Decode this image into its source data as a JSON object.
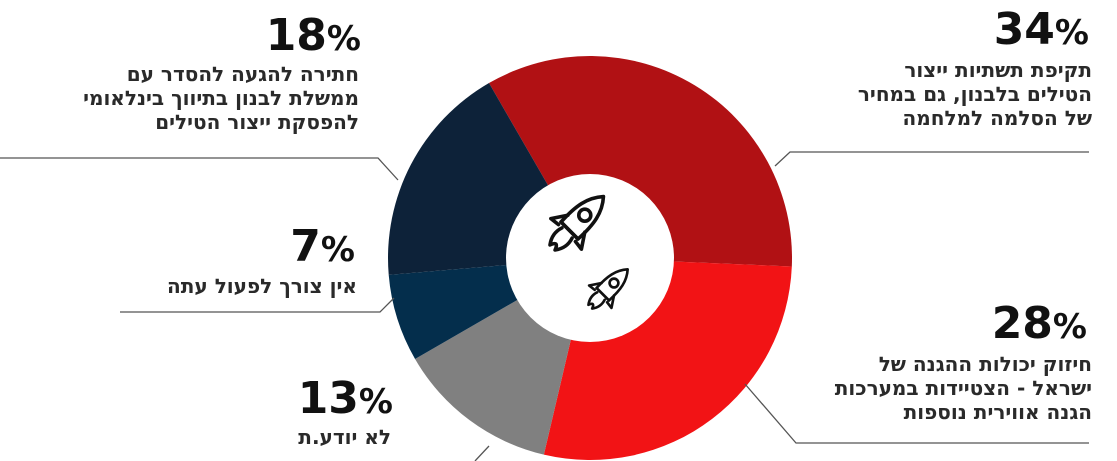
{
  "chart_data": {
    "type": "pie",
    "variant": "donut",
    "categories": [
      "תקיפת תשתיות ייצור הטילים בלבנון, גם במחיר של הסלמה למלחמה",
      "חיזוק יכולות ההגנה של ישראל - הצטיידות במערכות הגנה אווירית נוספות",
      "לא יודע.ת",
      "אין צורך לפעול עתה",
      "חתירה להגעה להסדר עם ממשלת לבנון בתיווך בינלאומי להפסקת ייצור הטילים"
    ],
    "values": [
      34,
      28,
      13,
      7,
      18
    ],
    "unit": "%",
    "slices": [
      {
        "value": 34,
        "value_label": "34",
        "color": "#b11114",
        "label_lines": [
          "תקיפת תשתיות ייצור",
          "הטילים בלבנון, גם במחיר",
          "של הסלמה למלחמה"
        ]
      },
      {
        "value": 28,
        "value_label": "28",
        "color": "#f21315",
        "label_lines": [
          "חיזוק יכולות ההגנה של",
          "ישראל - הצטיידות במערכות",
          "הגנה אווירית נוספות"
        ]
      },
      {
        "value": 13,
        "value_label": "13",
        "color": "#808080",
        "label_lines": [
          "לא יודע.ת"
        ]
      },
      {
        "value": 7,
        "value_label": "7",
        "color": "#042e4c",
        "label_lines": [
          "אין צורך לפעול עתה"
        ]
      },
      {
        "value": 18,
        "value_label": "18",
        "color": "#0d2239",
        "label_lines": [
          "חתירה להגעה להסדר עם",
          "ממשלת לבנון בתיווך בינלאומי",
          "להפסקת ייצור הטילים"
        ]
      }
    ],
    "center_icon": "two-rockets-icon"
  }
}
